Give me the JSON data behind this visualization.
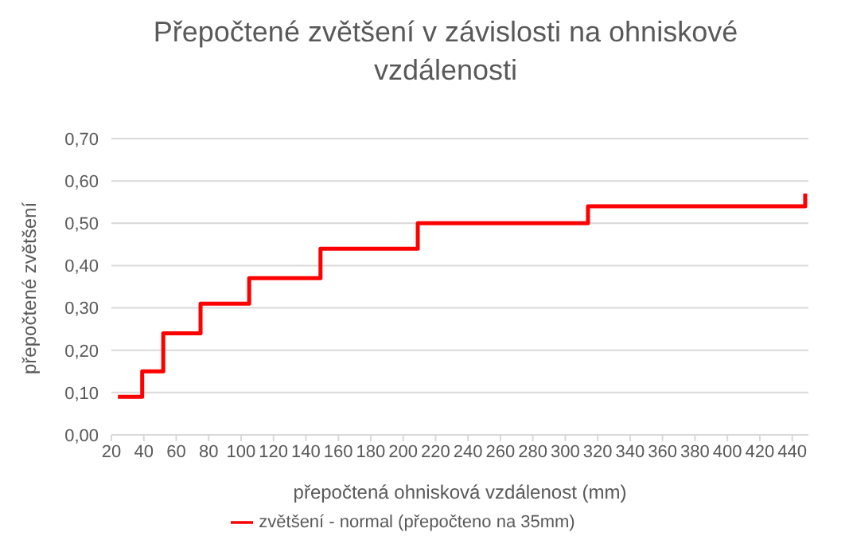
{
  "chart_data": {
    "type": "step",
    "title": "Přepočtené zvětšení v závislosti na ohniskové vzdálenosti",
    "xlabel": "přepočtená ohnisková vzdálenost (mm)",
    "ylabel": "přepočtené zvětšení",
    "x": [
      24,
      39,
      52,
      75,
      105,
      149,
      209,
      314,
      448
    ],
    "series": [
      {
        "name": "zvětšení - normal (přepočteno na 35mm)",
        "color": "#ff0000",
        "values": [
          0.09,
          0.15,
          0.24,
          0.31,
          0.37,
          0.44,
          0.5,
          0.54,
          0.57
        ]
      }
    ],
    "xlim": [
      20,
      450
    ],
    "xticks": [
      20,
      40,
      60,
      80,
      100,
      120,
      140,
      160,
      180,
      200,
      220,
      240,
      260,
      280,
      300,
      320,
      340,
      360,
      380,
      400,
      420,
      440
    ],
    "ylim": [
      0,
      0.7
    ],
    "yticks": [
      {
        "value": 0,
        "label": "0,00"
      },
      {
        "value": 0.1,
        "label": "0,10"
      },
      {
        "value": 0.2,
        "label": "0,20"
      },
      {
        "value": 0.3,
        "label": "0,30"
      },
      {
        "value": 0.4,
        "label": "0,40"
      },
      {
        "value": 0.5,
        "label": "0,50"
      },
      {
        "value": 0.6,
        "label": "0,60"
      },
      {
        "value": 0.7,
        "label": "0,70"
      }
    ],
    "grid": "y",
    "legend": "bottom",
    "marker": "none",
    "line_style": "solid"
  }
}
